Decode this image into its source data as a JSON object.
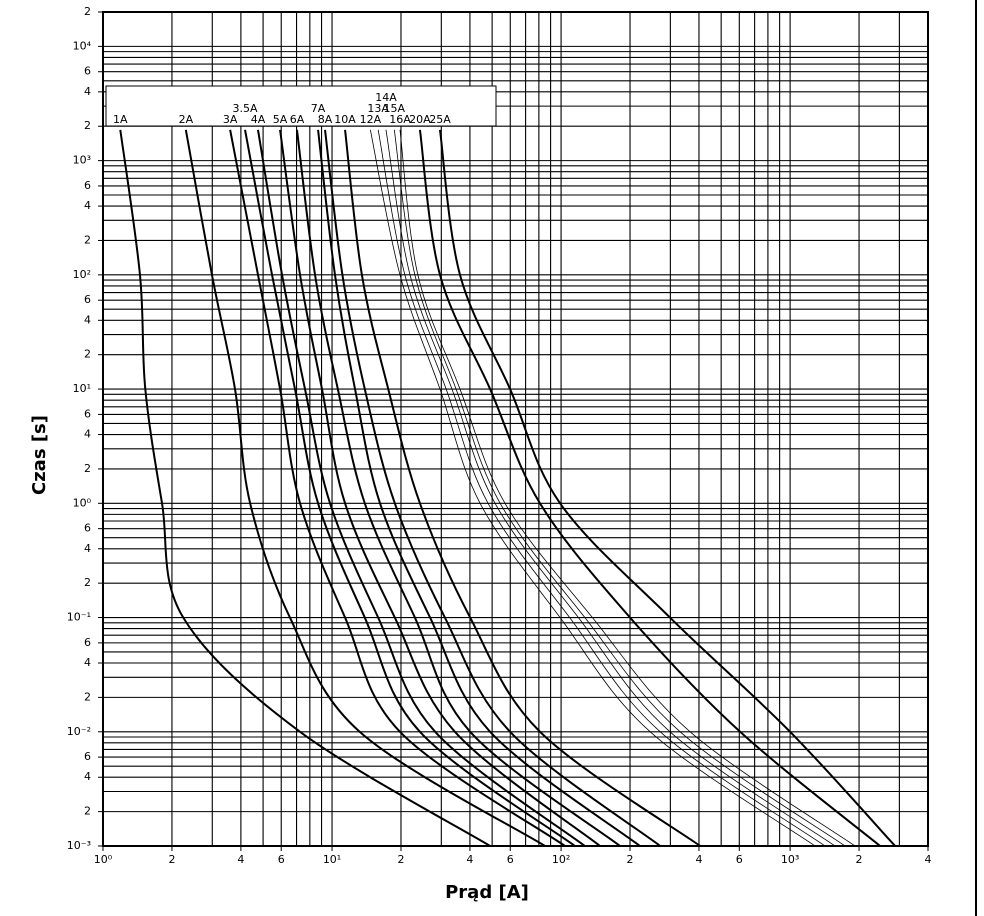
{
  "chart_data": {
    "type": "line",
    "xlabel": "Prąd [A]",
    "ylabel": "Czas [s]",
    "log_x": true,
    "log_y": true,
    "grid": true,
    "xlim": [
      1,
      4000
    ],
    "ylim": [
      0.001,
      20000
    ],
    "xticks": [
      {
        "value": 1,
        "label": "10⁰"
      },
      2,
      4,
      6,
      {
        "value": 10,
        "label": "10¹"
      },
      {
        "value": 20,
        "label": "2"
      },
      {
        "value": 40,
        "label": "4"
      },
      {
        "value": 60,
        "label": "6"
      },
      {
        "value": 100,
        "label": "10²"
      },
      {
        "value": 200,
        "label": "2"
      },
      {
        "value": 400,
        "label": "4"
      },
      {
        "value": 600,
        "label": "6"
      },
      {
        "value": 1000,
        "label": "10³"
      },
      {
        "value": 2000,
        "label": "2"
      },
      {
        "value": 4000,
        "label": "4"
      }
    ],
    "yticks": [
      {
        "value": 0.001,
        "label": "10⁻³"
      },
      {
        "value": 0.002,
        "label": "2"
      },
      {
        "value": 0.004,
        "label": "4"
      },
      {
        "value": 0.006,
        "label": "6"
      },
      {
        "value": 0.01,
        "label": "10⁻²"
      },
      {
        "value": 0.02,
        "label": "2"
      },
      {
        "value": 0.04,
        "label": "4"
      },
      {
        "value": 0.06,
        "label": "6"
      },
      {
        "value": 0.1,
        "label": "10⁻¹"
      },
      {
        "value": 0.2,
        "label": "2"
      },
      {
        "value": 0.4,
        "label": "4"
      },
      {
        "value": 0.6,
        "label": "6"
      },
      {
        "value": 1,
        "label": "10⁰"
      },
      2,
      4,
      6,
      {
        "value": 10,
        "label": "10¹"
      },
      {
        "value": 20,
        "label": "2"
      },
      {
        "value": 40,
        "label": "4"
      },
      {
        "value": 60,
        "label": "6"
      },
      {
        "value": 100,
        "label": "10²"
      },
      {
        "value": 200,
        "label": "2"
      },
      {
        "value": 400,
        "label": "4"
      },
      {
        "value": 600,
        "label": "6"
      },
      {
        "value": 1000,
        "label": "10³"
      },
      {
        "value": 2000,
        "label": "2"
      },
      {
        "value": 4000,
        "label": "4"
      },
      {
        "value": 6000,
        "label": "6"
      },
      {
        "value": 10000,
        "label": "10⁴"
      },
      {
        "value": 20000,
        "label": "2"
      }
    ],
    "xgrid": [
      1,
      2,
      3,
      4,
      5,
      6,
      7,
      8,
      9,
      10,
      20,
      30,
      40,
      50,
      60,
      70,
      80,
      90,
      100,
      200,
      300,
      400,
      500,
      600,
      700,
      800,
      900,
      1000,
      2000,
      3000,
      4000
    ],
    "ygrid": [
      0.001,
      0.002,
      0.003,
      0.004,
      0.005,
      0.006,
      0.007,
      0.008,
      0.009,
      0.01,
      0.02,
      0.03,
      0.04,
      0.05,
      0.06,
      0.07,
      0.08,
      0.09,
      0.1,
      0.2,
      0.3,
      0.4,
      0.5,
      0.6,
      0.7,
      0.8,
      0.9,
      1,
      2,
      3,
      4,
      5,
      6,
      7,
      8,
      9,
      10,
      20,
      30,
      40,
      50,
      60,
      70,
      80,
      90,
      100,
      200,
      300,
      400,
      500,
      600,
      700,
      800,
      900,
      1000,
      2000,
      3000,
      4000,
      5000,
      6000,
      7000,
      8000,
      9000,
      10000,
      20000
    ],
    "color": "#000000",
    "series": [
      {
        "name": "1A",
        "line_width": 2,
        "x": [
          1.19,
          1.45,
          1.53,
          1.81,
          2.24,
          7.25,
          49.0
        ],
        "values": [
          1860,
          100,
          10,
          1,
          0.1,
          0.01,
          0.001
        ]
      },
      {
        "name": "2A",
        "line_width": 2,
        "x": [
          2.3,
          2.99,
          3.77,
          4.39,
          6.55,
          13.2,
          85.1
        ],
        "values": [
          1860,
          100,
          10,
          1,
          0.1,
          0.01,
          0.001
        ]
      },
      {
        "name": "3A",
        "line_width": 2,
        "x": [
          3.59,
          4.75,
          5.93,
          7.25,
          11.4,
          19.8,
          104
        ],
        "values": [
          1860,
          100,
          10,
          1,
          0.1,
          0.01,
          0.001
        ]
      },
      {
        "name": "3.5A",
        "line_width": 2,
        "x": [
          4.17,
          5.47,
          6.89,
          8.69,
          13.9,
          24.2,
          115
        ],
        "values": [
          1860,
          100,
          10,
          1,
          0.1,
          0.01,
          0.001
        ]
      },
      {
        "name": "4A",
        "line_width": 2,
        "x": [
          4.75,
          6.05,
          7.62,
          9.8,
          15.9,
          28.2,
          127
        ],
        "values": [
          1860,
          100,
          10,
          1,
          0.1,
          0.01,
          0.001
        ]
      },
      {
        "name": "5A",
        "line_width": 2,
        "x": [
          5.93,
          7.25,
          9.04,
          11.4,
          18.8,
          34.4,
          148
        ],
        "values": [
          1860,
          100,
          10,
          1,
          0.1,
          0.01,
          0.001
        ]
      },
      {
        "name": "6A",
        "line_width": 2,
        "x": [
          7.03,
          8.43,
          10.6,
          13.9,
          23.0,
          40.1,
          181
        ],
        "values": [
          1860,
          100,
          10,
          1,
          0.1,
          0.01,
          0.001
        ]
      },
      {
        "name": "7A",
        "line_width": 2,
        "x": [
          8.69,
          10.3,
          12.6,
          16.2,
          26.8,
          49.0,
          221
        ],
        "values": [
          1860,
          100,
          10,
          1,
          0.1,
          0.01,
          0.001
        ]
      },
      {
        "name": "8A",
        "line_width": 2,
        "x": [
          9.32,
          11.1,
          13.9,
          18.8,
          31.1,
          59.9,
          271
        ],
        "values": [
          1860,
          100,
          10,
          1,
          0.1,
          0.01,
          0.001
        ]
      },
      {
        "name": "10A",
        "line_width": 2,
        "x": [
          11.4,
          13.5,
          17.6,
          24.2,
          40.1,
          80.9,
          405
        ],
        "values": [
          1860,
          100,
          10,
          1,
          0.1,
          0.01,
          0.001
        ]
      },
      {
        "name": "12A",
        "line_width": 0.8,
        "x": [
          14.7,
          19.8,
          29.6,
          44.3,
          99.0,
          245,
          1286
        ],
        "values": [
          1860,
          100,
          10,
          1,
          0.1,
          0.01,
          0.001
        ]
      },
      {
        "name": "13A",
        "line_width": 0.8,
        "x": [
          15.9,
          20.8,
          31.5,
          48.0,
          109,
          271,
          1422
        ],
        "values": [
          1860,
          100,
          10,
          1,
          0.1,
          0.01,
          0.001
        ]
      },
      {
        "name": "14A",
        "line_width": 0.8,
        "x": [
          17.2,
          21.9,
          33.4,
          51.5,
          119,
          299,
          1572
        ],
        "values": [
          1860,
          100,
          10,
          1,
          0.1,
          0.01,
          0.001
        ]
      },
      {
        "name": "15A",
        "line_width": 0.8,
        "x": [
          18.7,
          23.0,
          34.8,
          54.2,
          127,
          331,
          1739
        ],
        "values": [
          1860,
          100,
          10,
          1,
          0.1,
          0.01,
          0.001
        ]
      },
      {
        "name": "16A",
        "line_width": 0.8,
        "x": [
          19.8,
          23.7,
          36.2,
          56.9,
          137,
          366,
          1922
        ],
        "values": [
          1860,
          100,
          10,
          1,
          0.1,
          0.01,
          0.001
        ]
      },
      {
        "name": "20A",
        "line_width": 2,
        "x": [
          24.2,
          29.6,
          49.0,
          80.9,
          200,
          605,
          2472
        ],
        "values": [
          1860,
          100,
          10,
          1,
          0.1,
          0.01,
          0.001
        ]
      },
      {
        "name": "25A",
        "line_width": 2,
        "x": [
          29.6,
          36.2,
          59.9,
          99.0,
          299,
          1000,
          2873
        ],
        "values": [
          1860,
          100,
          10,
          1,
          0.1,
          0.01,
          0.001
        ]
      }
    ]
  }
}
